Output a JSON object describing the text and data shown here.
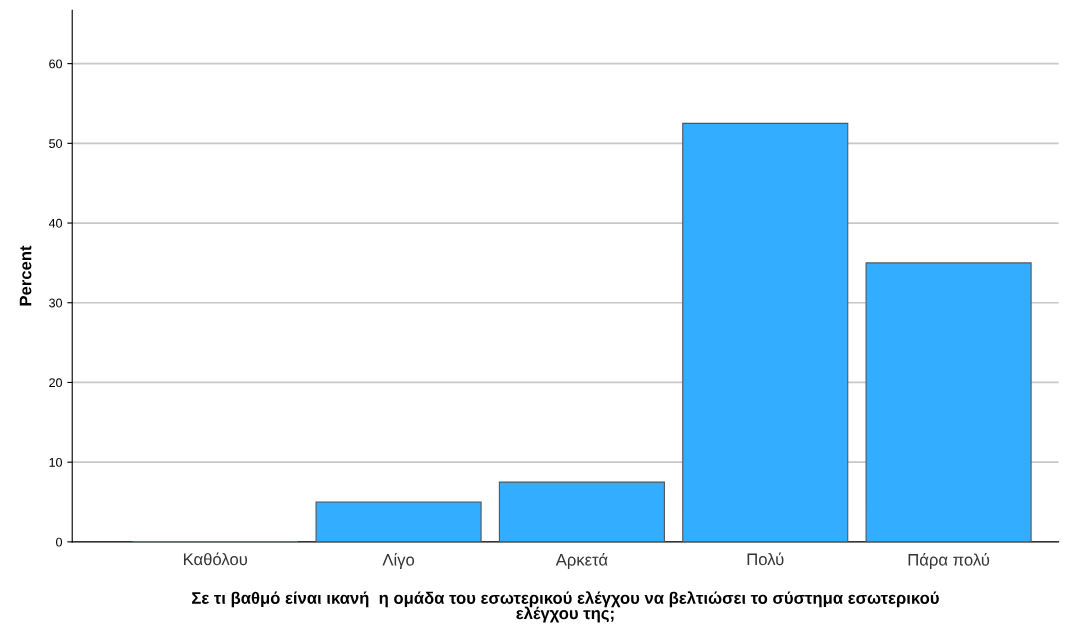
{
  "chart_data": {
    "type": "bar",
    "categories": [
      "Καθόλου",
      "Λίγο",
      "Αρκετά",
      "Πολύ",
      "Πάρα πολύ"
    ],
    "values": [
      0,
      5,
      7.5,
      52.5,
      35
    ],
    "color": "#33adff",
    "xlabel": "Σε τι βαθμό είναι ικανή  η ομάδα του εσωτερικού ελέγχου να βελτιώσει το σύστημα εσωτερικού\nελέγχου της;",
    "ylabel": "Percent",
    "ylim": [
      0,
      66.7
    ],
    "yticks": [
      0,
      10,
      20,
      30,
      40,
      50,
      60
    ],
    "grid": "y"
  }
}
